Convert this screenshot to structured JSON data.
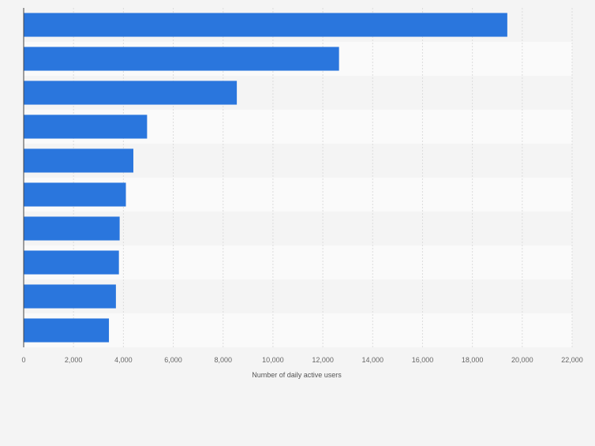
{
  "chart_data": {
    "type": "bar",
    "orientation": "horizontal",
    "categories": [
      "",
      "",
      "",
      "",
      "",
      "",
      "",
      "",
      "",
      ""
    ],
    "values": [
      19400,
      12650,
      8550,
      4950,
      4400,
      4100,
      3850,
      3820,
      3700,
      3420
    ],
    "xlabel": "Number of daily active users",
    "ylabel": "",
    "xlim": [
      0,
      22000
    ],
    "x_ticks": [
      0,
      2000,
      4000,
      6000,
      8000,
      10000,
      12000,
      14000,
      16000,
      18000,
      20000,
      22000
    ],
    "x_tick_labels": [
      "0",
      "2,000",
      "4,000",
      "6,000",
      "8,000",
      "10,000",
      "12,000",
      "14,000",
      "16,000",
      "18,000",
      "20,000",
      "22,000"
    ],
    "grid": true,
    "colors": {
      "bar": "#2a76dd",
      "background": "#f4f4f4",
      "band_alt": "#fafafa",
      "grid": "#dcdcdc",
      "axis": "#444444",
      "tick_text": "#666666"
    }
  }
}
